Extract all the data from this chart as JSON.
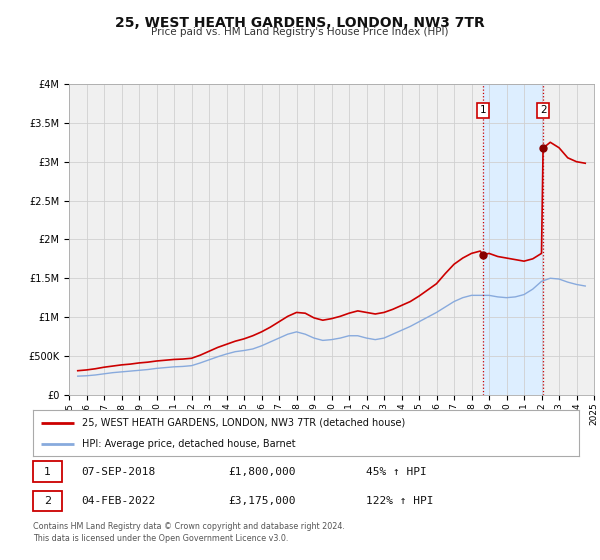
{
  "title": "25, WEST HEATH GARDENS, LONDON, NW3 7TR",
  "subtitle": "Price paid vs. HM Land Registry's House Price Index (HPI)",
  "ylim": [
    0,
    4000000
  ],
  "xlim_start": 1995,
  "xlim_end": 2025,
  "yticks": [
    0,
    500000,
    1000000,
    1500000,
    2000000,
    2500000,
    3000000,
    3500000,
    4000000
  ],
  "ytick_labels": [
    "£0",
    "£500K",
    "£1M",
    "£1.5M",
    "£2M",
    "£2.5M",
    "£3M",
    "£3.5M",
    "£4M"
  ],
  "xticks": [
    1995,
    1996,
    1997,
    1998,
    1999,
    2000,
    2001,
    2002,
    2003,
    2004,
    2005,
    2006,
    2007,
    2008,
    2009,
    2010,
    2011,
    2012,
    2013,
    2014,
    2015,
    2016,
    2017,
    2018,
    2019,
    2020,
    2021,
    2022,
    2023,
    2024,
    2025
  ],
  "sale1_date": 2018.67,
  "sale1_price": 1800000,
  "sale1_label": "1",
  "sale1_text": "07-SEP-2018",
  "sale1_amount": "£1,800,000",
  "sale1_hpi": "45% ↑ HPI",
  "sale2_date": 2022.09,
  "sale2_price": 3175000,
  "sale2_label": "2",
  "sale2_text": "04-FEB-2022",
  "sale2_amount": "£3,175,000",
  "sale2_hpi": "122% ↑ HPI",
  "red_line_color": "#cc0000",
  "blue_line_color": "#88aadd",
  "marker_color": "#880000",
  "background_color": "#ffffff",
  "plot_bg_color": "#f0f0f0",
  "shade_color": "#ddeeff",
  "grid_color": "#d0d0d0",
  "legend_label_red": "25, WEST HEATH GARDENS, LONDON, NW3 7TR (detached house)",
  "legend_label_blue": "HPI: Average price, detached house, Barnet",
  "footer": "Contains HM Land Registry data © Crown copyright and database right 2024.\nThis data is licensed under the Open Government Licence v3.0.",
  "red_x": [
    1995.5,
    1996.0,
    1996.5,
    1997.0,
    1997.5,
    1998.0,
    1998.5,
    1999.0,
    1999.5,
    2000.0,
    2000.5,
    2001.0,
    2001.5,
    2002.0,
    2002.5,
    2003.0,
    2003.5,
    2004.0,
    2004.5,
    2005.0,
    2005.5,
    2006.0,
    2006.5,
    2007.0,
    2007.5,
    2008.0,
    2008.5,
    2009.0,
    2009.5,
    2010.0,
    2010.5,
    2011.0,
    2011.5,
    2012.0,
    2012.5,
    2013.0,
    2013.5,
    2014.0,
    2014.5,
    2015.0,
    2015.5,
    2016.0,
    2016.5,
    2017.0,
    2017.5,
    2018.0,
    2018.5,
    2018.67,
    2019.0,
    2019.5,
    2020.0,
    2020.5,
    2021.0,
    2021.5,
    2022.0,
    2022.09,
    2022.5,
    2023.0,
    2023.5,
    2024.0,
    2024.5
  ],
  "red_y": [
    310000,
    320000,
    335000,
    355000,
    370000,
    385000,
    395000,
    410000,
    420000,
    435000,
    445000,
    455000,
    460000,
    470000,
    510000,
    560000,
    610000,
    650000,
    690000,
    720000,
    760000,
    810000,
    870000,
    940000,
    1010000,
    1060000,
    1050000,
    990000,
    960000,
    980000,
    1010000,
    1050000,
    1080000,
    1060000,
    1040000,
    1060000,
    1100000,
    1150000,
    1200000,
    1270000,
    1350000,
    1430000,
    1560000,
    1680000,
    1760000,
    1820000,
    1850000,
    1800000,
    1820000,
    1780000,
    1760000,
    1740000,
    1720000,
    1750000,
    1820000,
    3175000,
    3250000,
    3180000,
    3050000,
    3000000,
    2980000
  ],
  "blue_x": [
    1995.5,
    1996.0,
    1996.5,
    1997.0,
    1997.5,
    1998.0,
    1998.5,
    1999.0,
    1999.5,
    2000.0,
    2000.5,
    2001.0,
    2001.5,
    2002.0,
    2002.5,
    2003.0,
    2003.5,
    2004.0,
    2004.5,
    2005.0,
    2005.5,
    2006.0,
    2006.5,
    2007.0,
    2007.5,
    2008.0,
    2008.5,
    2009.0,
    2009.5,
    2010.0,
    2010.5,
    2011.0,
    2011.5,
    2012.0,
    2012.5,
    2013.0,
    2013.5,
    2014.0,
    2014.5,
    2015.0,
    2015.5,
    2016.0,
    2016.5,
    2017.0,
    2017.5,
    2018.0,
    2018.5,
    2019.0,
    2019.5,
    2020.0,
    2020.5,
    2021.0,
    2021.5,
    2022.0,
    2022.5,
    2023.0,
    2023.5,
    2024.0,
    2024.5
  ],
  "blue_y": [
    240000,
    245000,
    255000,
    270000,
    285000,
    295000,
    305000,
    315000,
    325000,
    340000,
    350000,
    360000,
    365000,
    375000,
    410000,
    450000,
    490000,
    525000,
    555000,
    570000,
    590000,
    630000,
    680000,
    730000,
    780000,
    810000,
    780000,
    730000,
    700000,
    710000,
    730000,
    760000,
    760000,
    730000,
    710000,
    730000,
    780000,
    830000,
    880000,
    940000,
    1000000,
    1060000,
    1130000,
    1200000,
    1250000,
    1280000,
    1280000,
    1280000,
    1260000,
    1250000,
    1260000,
    1290000,
    1360000,
    1460000,
    1500000,
    1490000,
    1450000,
    1420000,
    1400000
  ]
}
